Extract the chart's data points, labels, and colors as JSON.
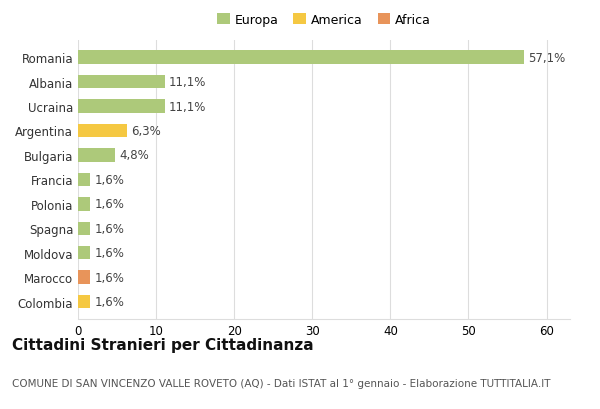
{
  "categories": [
    "Romania",
    "Albania",
    "Ucraina",
    "Argentina",
    "Bulgaria",
    "Francia",
    "Polonia",
    "Spagna",
    "Moldova",
    "Marocco",
    "Colombia"
  ],
  "values": [
    57.1,
    11.1,
    11.1,
    6.3,
    4.8,
    1.6,
    1.6,
    1.6,
    1.6,
    1.6,
    1.6
  ],
  "labels": [
    "57,1%",
    "11,1%",
    "11,1%",
    "6,3%",
    "4,8%",
    "1,6%",
    "1,6%",
    "1,6%",
    "1,6%",
    "1,6%",
    "1,6%"
  ],
  "colors": [
    "#adc97a",
    "#adc97a",
    "#adc97a",
    "#f5c842",
    "#adc97a",
    "#adc97a",
    "#adc97a",
    "#adc97a",
    "#adc97a",
    "#e8945a",
    "#f5c842"
  ],
  "legend_labels": [
    "Europa",
    "America",
    "Africa"
  ],
  "legend_colors": [
    "#adc97a",
    "#f5c842",
    "#e8945a"
  ],
  "title": "Cittadini Stranieri per Cittadinanza",
  "subtitle": "COMUNE DI SAN VINCENZO VALLE ROVETO (AQ) - Dati ISTAT al 1° gennaio - Elaborazione TUTTITALIA.IT",
  "xlim": [
    0,
    63
  ],
  "xticks": [
    0,
    10,
    20,
    30,
    40,
    50,
    60
  ],
  "background_color": "#ffffff",
  "grid_color": "#dddddd",
  "bar_height": 0.55,
  "title_fontsize": 11,
  "subtitle_fontsize": 7.5,
  "tick_fontsize": 8.5,
  "label_fontsize": 8.5
}
